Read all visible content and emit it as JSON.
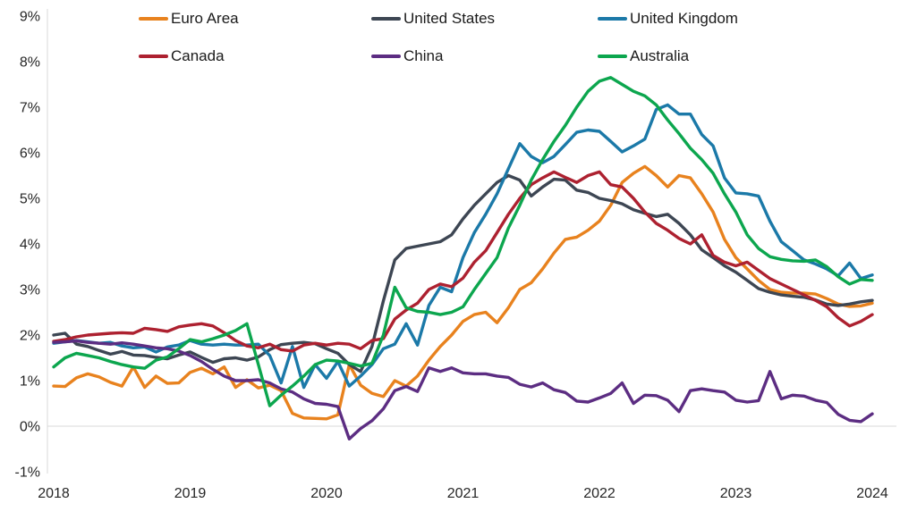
{
  "chart_data": {
    "type": "line",
    "title": "",
    "xlabel": "",
    "ylabel": "",
    "ylim": [
      -1,
      9
    ],
    "grid": "horizontal line at 0% only",
    "legend_position": "top, two rows inside plot",
    "x_axis_labels": [
      "2018",
      "2019",
      "2020",
      "2021",
      "2022",
      "2023",
      "2024"
    ],
    "y_axis_labels": [
      "9%",
      "8%",
      "7%",
      "6%",
      "5%",
      "4%",
      "3%",
      "2%",
      "1%",
      "0%",
      "-1%"
    ],
    "y_tick_values": [
      9,
      8,
      7,
      6,
      5,
      4,
      3,
      2,
      1,
      0,
      -1
    ],
    "x_start_year": 2018,
    "x_months_per_point": 1,
    "axis_color": "#d9d9d9",
    "text_color": "#262626",
    "series": [
      {
        "name": "Euro Area",
        "color": "#e8821e",
        "values": [
          0.88,
          0.87,
          1.06,
          1.15,
          1.08,
          0.96,
          0.88,
          1.3,
          0.85,
          1.1,
          0.94,
          0.95,
          1.18,
          1.27,
          1.15,
          1.3,
          0.85,
          1.02,
          0.84,
          0.9,
          0.78,
          0.28,
          0.18,
          0.17,
          0.16,
          0.25,
          1.35,
          0.9,
          0.72,
          0.65,
          1.0,
          0.88,
          1.1,
          1.45,
          1.75,
          2.0,
          2.3,
          2.45,
          2.5,
          2.27,
          2.6,
          3.0,
          3.15,
          3.45,
          3.8,
          4.1,
          4.15,
          4.3,
          4.5,
          4.85,
          5.35,
          5.55,
          5.7,
          5.5,
          5.25,
          5.5,
          5.45,
          5.1,
          4.7,
          4.1,
          3.7,
          3.45,
          3.2,
          3.0,
          2.94,
          2.92,
          2.92,
          2.9,
          2.8,
          2.68,
          2.63,
          2.64,
          2.7
        ]
      },
      {
        "name": "United States",
        "color": "#3d4653",
        "values": [
          2.0,
          2.04,
          1.8,
          1.75,
          1.66,
          1.58,
          1.64,
          1.56,
          1.55,
          1.51,
          1.48,
          1.56,
          1.63,
          1.51,
          1.4,
          1.48,
          1.5,
          1.45,
          1.52,
          1.68,
          1.79,
          1.82,
          1.84,
          1.81,
          1.7,
          1.6,
          1.35,
          1.2,
          1.75,
          2.75,
          3.65,
          3.9,
          3.95,
          4.0,
          4.05,
          4.2,
          4.55,
          4.85,
          5.1,
          5.35,
          5.5,
          5.4,
          5.05,
          5.25,
          5.42,
          5.4,
          5.18,
          5.13,
          5.0,
          4.95,
          4.88,
          4.75,
          4.67,
          4.6,
          4.65,
          4.45,
          4.2,
          3.87,
          3.7,
          3.52,
          3.38,
          3.2,
          3.02,
          2.94,
          2.88,
          2.85,
          2.83,
          2.77,
          2.68,
          2.65,
          2.68,
          2.73,
          2.76
        ]
      },
      {
        "name": "United Kingdom",
        "color": "#1b79a8",
        "values": [
          1.82,
          1.85,
          1.88,
          1.85,
          1.82,
          1.84,
          1.76,
          1.72,
          1.74,
          1.63,
          1.74,
          1.78,
          1.88,
          1.8,
          1.78,
          1.8,
          1.78,
          1.78,
          1.8,
          1.55,
          0.95,
          1.75,
          0.85,
          1.35,
          1.05,
          1.42,
          0.88,
          1.1,
          1.35,
          1.7,
          1.8,
          2.25,
          1.78,
          2.65,
          3.05,
          2.95,
          3.7,
          4.25,
          4.65,
          5.1,
          5.65,
          6.2,
          5.92,
          5.78,
          5.92,
          6.18,
          6.45,
          6.5,
          6.47,
          6.25,
          6.02,
          6.15,
          6.3,
          6.95,
          7.05,
          6.85,
          6.85,
          6.4,
          6.15,
          5.45,
          5.12,
          5.1,
          5.05,
          4.5,
          4.05,
          3.85,
          3.65,
          3.56,
          3.45,
          3.3,
          3.58,
          3.24,
          3.32
        ]
      },
      {
        "name": "Canada",
        "color": "#ad2130",
        "values": [
          1.86,
          1.9,
          1.96,
          2.0,
          2.02,
          2.04,
          2.05,
          2.04,
          2.15,
          2.12,
          2.08,
          2.18,
          2.22,
          2.25,
          2.2,
          2.05,
          1.88,
          1.76,
          1.72,
          1.8,
          1.68,
          1.65,
          1.78,
          1.82,
          1.78,
          1.82,
          1.8,
          1.7,
          1.88,
          1.92,
          2.35,
          2.55,
          2.7,
          3.0,
          3.12,
          3.06,
          3.25,
          3.6,
          3.85,
          4.25,
          4.65,
          5.0,
          5.3,
          5.45,
          5.58,
          5.46,
          5.35,
          5.5,
          5.58,
          5.3,
          5.25,
          5.0,
          4.7,
          4.45,
          4.3,
          4.12,
          4.0,
          4.2,
          3.75,
          3.6,
          3.52,
          3.6,
          3.42,
          3.24,
          3.12,
          3.0,
          2.88,
          2.76,
          2.62,
          2.38,
          2.2,
          2.3,
          2.45
        ]
      },
      {
        "name": "China",
        "color": "#5c2d82",
        "values": [
          1.84,
          1.85,
          1.87,
          1.84,
          1.82,
          1.8,
          1.83,
          1.8,
          1.76,
          1.72,
          1.7,
          1.65,
          1.55,
          1.42,
          1.25,
          1.1,
          1.0,
          1.0,
          1.02,
          0.95,
          0.82,
          0.75,
          0.6,
          0.5,
          0.48,
          0.43,
          -0.28,
          -0.05,
          0.12,
          0.38,
          0.78,
          0.87,
          0.76,
          1.28,
          1.2,
          1.28,
          1.17,
          1.15,
          1.15,
          1.1,
          1.07,
          0.92,
          0.86,
          0.95,
          0.8,
          0.74,
          0.55,
          0.53,
          0.62,
          0.72,
          0.95,
          0.5,
          0.68,
          0.67,
          0.57,
          0.32,
          0.78,
          0.82,
          0.78,
          0.75,
          0.57,
          0.53,
          0.56,
          1.2,
          0.6,
          0.68,
          0.66,
          0.57,
          0.52,
          0.26,
          0.13,
          0.1,
          0.27
        ]
      },
      {
        "name": "Australia",
        "color": "#0ca64e",
        "values": [
          1.3,
          1.5,
          1.6,
          1.55,
          1.5,
          1.42,
          1.35,
          1.3,
          1.27,
          1.45,
          1.52,
          1.7,
          1.9,
          1.85,
          1.92,
          2.0,
          2.1,
          2.25,
          1.35,
          0.45,
          0.68,
          0.88,
          1.1,
          1.35,
          1.45,
          1.43,
          1.38,
          1.32,
          1.38,
          2.0,
          3.05,
          2.6,
          2.52,
          2.5,
          2.45,
          2.5,
          2.62,
          3.0,
          3.35,
          3.7,
          4.35,
          4.85,
          5.4,
          5.85,
          6.25,
          6.6,
          7.0,
          7.35,
          7.57,
          7.65,
          7.5,
          7.35,
          7.25,
          7.05,
          6.72,
          6.42,
          6.1,
          5.85,
          5.55,
          5.1,
          4.7,
          4.2,
          3.9,
          3.72,
          3.66,
          3.63,
          3.62,
          3.65,
          3.5,
          3.28,
          3.12,
          3.22,
          3.2
        ]
      }
    ]
  }
}
